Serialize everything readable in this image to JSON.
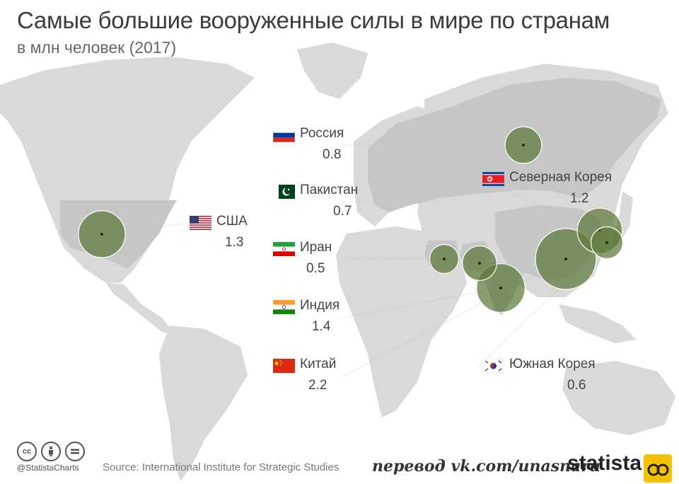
{
  "title": "Самые большие вооруженные силы в мире по странам",
  "subtitle": "в млн человек (2017)",
  "colors": {
    "bubble": "#5b7a3a",
    "land": "#d9d9d9",
    "land_highlight": "#c6c6c6",
    "leader": "#bdbdbd"
  },
  "chart_data": {
    "type": "bubble-map",
    "title": "Самые большие вооруженные силы в мире по странам",
    "subtitle": "в млн человек (2017)",
    "unit": "млн человек",
    "series": [
      {
        "country": "США",
        "value": 1.3,
        "flag": "us-flag"
      },
      {
        "country": "Россия",
        "value": 0.8,
        "flag": "ru-flag"
      },
      {
        "country": "Пакистан",
        "value": 0.7,
        "flag": "pk-flag"
      },
      {
        "country": "Иран",
        "value": 0.5,
        "flag": "ir-flag"
      },
      {
        "country": "Индия",
        "value": 1.4,
        "flag": "in-flag"
      },
      {
        "country": "Китай",
        "value": 2.2,
        "flag": "cn-flag"
      },
      {
        "country": "Северная Корея",
        "value": 1.2,
        "flag": "kp-flag"
      },
      {
        "country": "Южная Корея",
        "value": 0.6,
        "flag": "kr-flag"
      }
    ]
  },
  "footer": {
    "handle": "@StatistaCharts",
    "source": "Source: International Institute for Strategic Studies",
    "credit": "перевод vk.com/unasnaru",
    "brand": "statista",
    "license_icons": [
      "cc-icon",
      "by-icon",
      "nd-icon"
    ]
  }
}
